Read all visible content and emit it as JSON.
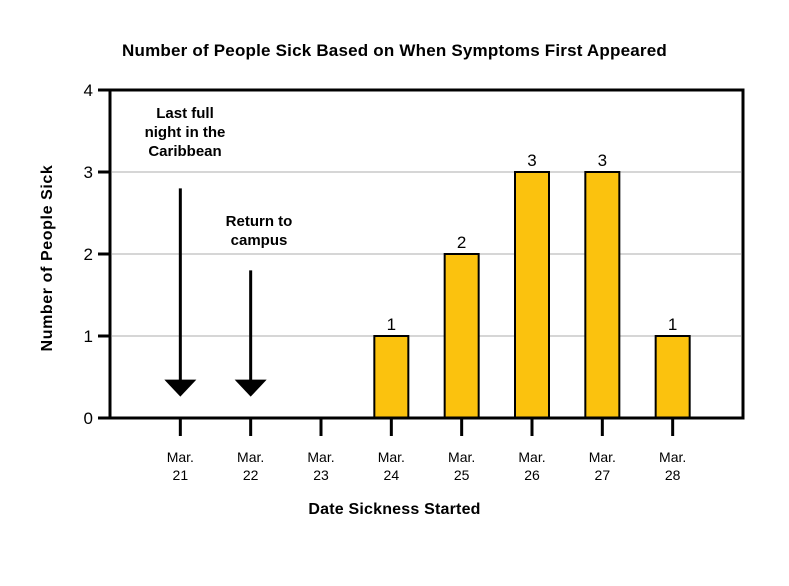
{
  "chart_data": {
    "type": "bar",
    "title": "Number of People Sick Based on When Symptoms First Appeared",
    "xlabel": "Date Sickness Started",
    "ylabel": "Number of People Sick",
    "categories": [
      "Mar. 21",
      "Mar. 22",
      "Mar. 23",
      "Mar. 24",
      "Mar. 25",
      "Mar. 26",
      "Mar. 27",
      "Mar. 28"
    ],
    "values": [
      0,
      0,
      0,
      1,
      2,
      3,
      3,
      1
    ],
    "bar_value_labels": [
      "",
      "",
      "",
      "1",
      "2",
      "3",
      "3",
      "1"
    ],
    "ylim": [
      0,
      4
    ],
    "yticks": [
      0,
      1,
      2,
      3,
      4
    ],
    "grid": "horizontal",
    "legend": "none",
    "bar_color": "#FBC20E",
    "bar_border_color": "#000000",
    "axis_color": "#000000",
    "gridline_color": "#D6D6D6",
    "annotations": [
      {
        "text": "Last full\nnight in the\nCaribbean",
        "category": "Mar. 21",
        "arrow_from_y": 2.8,
        "arrow_tip_y": 0.26
      },
      {
        "text": "Return to\ncampus",
        "category": "Mar. 22",
        "arrow_from_y": 1.8,
        "arrow_tip_y": 0.26
      }
    ]
  }
}
